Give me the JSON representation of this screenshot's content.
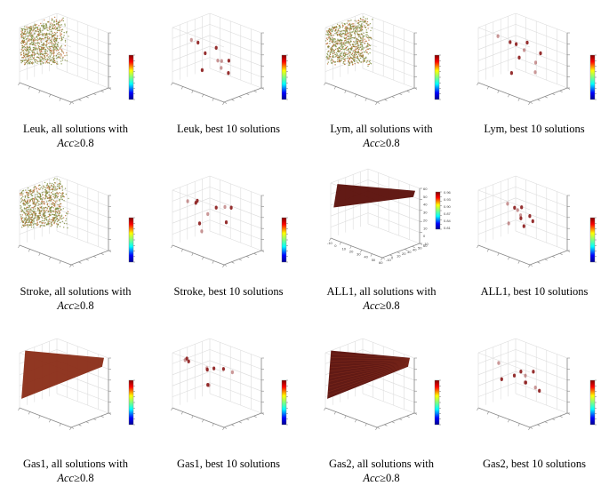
{
  "figure": {
    "panels": [
      {
        "id": "leuk-all",
        "line1": "Leuk, all solutions with",
        "acc_var": "Acc",
        "acc_rest": "≥0.8",
        "kind": "cloud",
        "color": "green"
      },
      {
        "id": "leuk-best",
        "line1": "Leuk, best 10 solutions",
        "kind": "points",
        "color": "red"
      },
      {
        "id": "lym-all",
        "line1": "Lym, all solutions with",
        "acc_var": "Acc",
        "acc_rest": "≥0.8",
        "kind": "cloud",
        "color": "green"
      },
      {
        "id": "lym-best",
        "line1": "Lym, best 10 solutions",
        "kind": "points",
        "color": "red"
      },
      {
        "id": "stroke-all",
        "line1": "Stroke, all solutions with",
        "acc_var": "Acc",
        "acc_rest": "≥0.8",
        "kind": "cloud",
        "color": "green"
      },
      {
        "id": "stroke-best",
        "line1": "Stroke, best 10 solutions",
        "kind": "points",
        "color": "red"
      },
      {
        "id": "all1-all",
        "line1": "ALL1, all solutions with",
        "acc_var": "Acc",
        "acc_rest": "≥0.8",
        "kind": "solid",
        "color": "darkred"
      },
      {
        "id": "all1-best",
        "line1": "ALL1, best 10 solutions",
        "kind": "points",
        "color": "red"
      },
      {
        "id": "gas1-all",
        "line1": "Gas1, all solutions with",
        "acc_var": "Acc",
        "acc_rest": "≥0.8",
        "kind": "solid",
        "color": "brownred"
      },
      {
        "id": "gas1-best",
        "line1": "Gas1, best 10 solutions",
        "kind": "points",
        "color": "red"
      },
      {
        "id": "gas2-all",
        "line1": "Gas2, all solutions with",
        "acc_var": "Acc",
        "acc_rest": "≥0.8",
        "kind": "solid",
        "color": "darkred"
      },
      {
        "id": "gas2-best",
        "line1": "Gas2, best 10 solutions",
        "kind": "points",
        "color": "red"
      }
    ],
    "all1_axis_ticks": {
      "z": [
        "60",
        "50",
        "40",
        "30",
        "20",
        "10",
        "0",
        "-10"
      ],
      "x": [
        "-10",
        "0",
        "10",
        "20",
        "30",
        "40",
        "50",
        "60"
      ],
      "y": [
        "-10",
        "0",
        "10",
        "20",
        "30",
        "40",
        "50",
        "60"
      ],
      "colorbar": [
        "0.96",
        "0.93",
        "0.90",
        "0.87",
        "0.84",
        "0.81"
      ]
    },
    "colors": {
      "cloud_green": "#7a8a3a",
      "cloud_orange": "#b4662a",
      "solid_dark": "#5a0e08",
      "solid_brown": "#8a2c16",
      "point_red": "#8b1a1a",
      "axis": "#888888",
      "grid": "#dcdcdc"
    }
  },
  "chart_data": [
    {
      "type": "scatter",
      "title": "Leuk, all solutions with Acc≥0.8",
      "note": "3D scatter, dense triangular point cloud"
    },
    {
      "type": "scatter",
      "title": "Leuk, best 10 solutions",
      "points3d": [
        [
          0.15,
          0.3,
          0.75
        ],
        [
          0.35,
          0.2,
          0.8
        ],
        [
          0.45,
          0.55,
          0.65
        ],
        [
          0.7,
          0.35,
          0.55
        ],
        [
          0.2,
          0.6,
          0.45
        ],
        [
          0.55,
          0.75,
          0.4
        ],
        [
          0.3,
          0.8,
          0.3
        ],
        [
          0.65,
          0.6,
          0.25
        ],
        [
          0.25,
          0.45,
          0.2
        ],
        [
          0.8,
          0.2,
          0.5
        ]
      ]
    },
    {
      "type": "scatter",
      "title": "Lym, all solutions with Acc≥0.8",
      "note": "3D scatter, dense triangular point cloud"
    },
    {
      "type": "scatter",
      "title": "Lym, best 10 solutions",
      "points3d": [
        [
          0.2,
          0.25,
          0.85
        ],
        [
          0.4,
          0.3,
          0.8
        ],
        [
          0.55,
          0.55,
          0.78
        ],
        [
          0.6,
          0.4,
          0.7
        ],
        [
          0.3,
          0.6,
          0.65
        ],
        [
          0.7,
          0.7,
          0.6
        ],
        [
          0.75,
          0.5,
          0.5
        ],
        [
          0.25,
          0.75,
          0.35
        ],
        [
          0.5,
          0.2,
          0.3
        ],
        [
          0.85,
          0.35,
          0.4
        ]
      ]
    },
    {
      "type": "scatter",
      "title": "Stroke, all solutions with Acc≥0.8",
      "note": "3D scatter, dense triangular point cloud"
    },
    {
      "type": "scatter",
      "title": "Stroke, best 10 solutions",
      "points3d": [
        [
          0.15,
          0.2,
          0.8
        ],
        [
          0.2,
          0.35,
          0.75
        ],
        [
          0.3,
          0.25,
          0.85
        ],
        [
          0.8,
          0.3,
          0.9
        ],
        [
          0.85,
          0.4,
          0.88
        ],
        [
          0.45,
          0.55,
          0.7
        ],
        [
          0.25,
          0.6,
          0.5
        ],
        [
          0.5,
          0.75,
          0.4
        ],
        [
          0.2,
          0.45,
          0.35
        ],
        [
          0.35,
          0.3,
          0.3
        ]
      ]
    },
    {
      "type": "scatter",
      "title": "ALL1, all solutions with Acc≥0.8",
      "xlim": [
        -10,
        60
      ],
      "ylim": [
        -10,
        60
      ],
      "zlim": [
        -10,
        60
      ],
      "colorbar_range": [
        0.81,
        0.96
      ],
      "note": "3D scatter, solid triangular cloud"
    },
    {
      "type": "scatter",
      "title": "ALL1, best 10 solutions",
      "points3d": [
        [
          0.35,
          0.3,
          0.8
        ],
        [
          0.45,
          0.35,
          0.75
        ],
        [
          0.55,
          0.4,
          0.78
        ],
        [
          0.4,
          0.5,
          0.65
        ],
        [
          0.6,
          0.55,
          0.6
        ],
        [
          0.5,
          0.45,
          0.55
        ],
        [
          0.35,
          0.65,
          0.5
        ],
        [
          0.55,
          0.7,
          0.45
        ],
        [
          0.45,
          0.6,
          0.35
        ],
        [
          0.3,
          0.4,
          0.4
        ]
      ]
    },
    {
      "type": "scatter",
      "title": "Gas1, all solutions with Acc≥0.8",
      "note": "3D scatter, solid triangular cloud"
    },
    {
      "type": "scatter",
      "title": "Gas1, best 10 solutions",
      "points3d": [
        [
          0.1,
          0.2,
          0.85
        ],
        [
          0.12,
          0.22,
          0.88
        ],
        [
          0.14,
          0.24,
          0.83
        ],
        [
          0.45,
          0.3,
          0.8
        ],
        [
          0.55,
          0.35,
          0.82
        ],
        [
          0.7,
          0.4,
          0.85
        ],
        [
          0.8,
          0.5,
          0.8
        ],
        [
          0.35,
          0.45,
          0.7
        ],
        [
          0.25,
          0.6,
          0.35
        ],
        [
          0.2,
          0.7,
          0.3
        ]
      ]
    },
    {
      "type": "scatter",
      "title": "Gas2, all solutions with Acc≥0.8",
      "note": "3D scatter, solid triangular cloud with grid texture"
    },
    {
      "type": "scatter",
      "title": "Gas2, best 10 solutions",
      "points3d": [
        [
          0.25,
          0.2,
          0.85
        ],
        [
          0.85,
          0.3,
          0.88
        ],
        [
          0.5,
          0.45,
          0.72
        ],
        [
          0.55,
          0.5,
          0.65
        ],
        [
          0.3,
          0.55,
          0.55
        ],
        [
          0.45,
          0.65,
          0.45
        ],
        [
          0.6,
          0.7,
          0.4
        ],
        [
          0.75,
          0.6,
          0.42
        ],
        [
          0.2,
          0.35,
          0.5
        ],
        [
          0.65,
          0.35,
          0.6
        ]
      ]
    }
  ]
}
